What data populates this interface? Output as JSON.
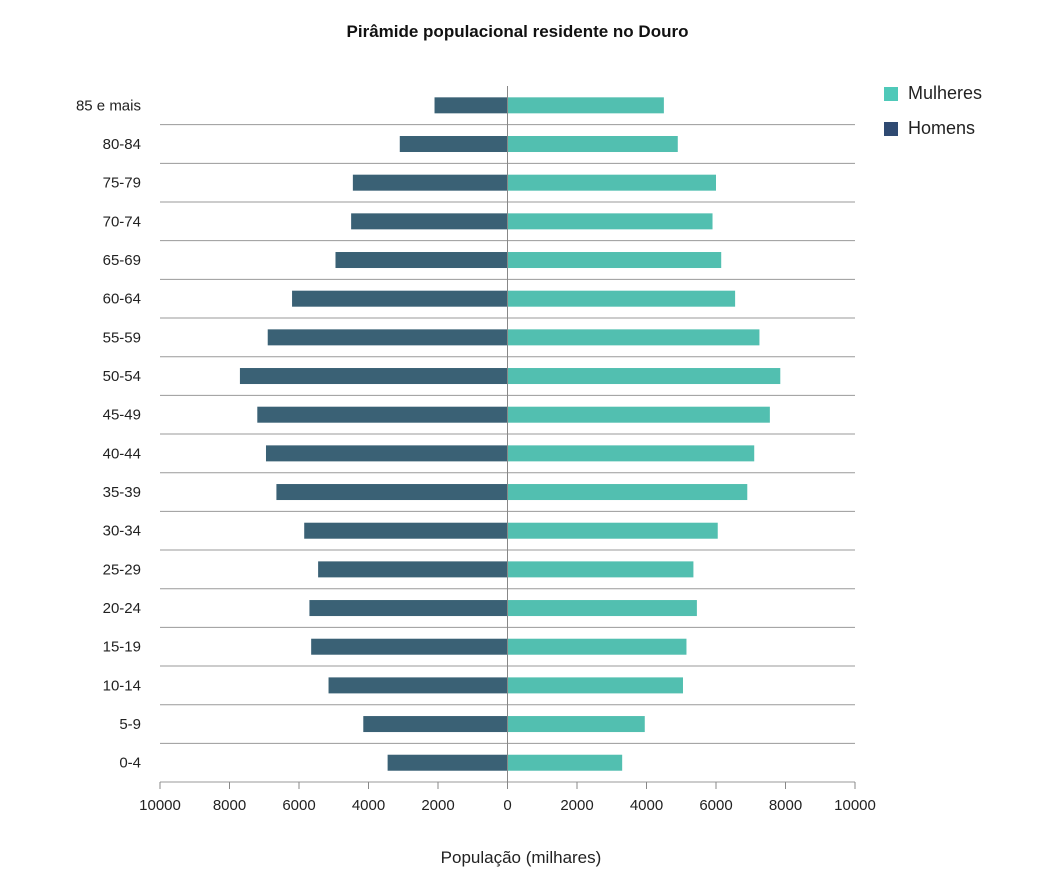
{
  "chart_data": {
    "type": "bar",
    "orientation": "horizontal",
    "title": "Pirâmide populacional residente no Douro",
    "xlabel": "População (milhares)",
    "ylabel": "",
    "xlim": [
      -10000,
      10000
    ],
    "x_ticks": [
      -10000,
      -8000,
      -6000,
      -4000,
      -2000,
      0,
      2000,
      4000,
      6000,
      8000,
      10000
    ],
    "x_tick_labels": [
      "10000",
      "8000",
      "6000",
      "4000",
      "2000",
      "0",
      "2000",
      "4000",
      "6000",
      "8000",
      "10000"
    ],
    "categories": [
      "85 e mais",
      "80-84",
      "75-79",
      "70-74",
      "65-69",
      "60-64",
      "55-59",
      "50-54",
      "45-49",
      "40-44",
      "35-39",
      "30-34",
      "25-29",
      "20-24",
      "15-19",
      "10-14",
      "5-9",
      "0-4"
    ],
    "series": [
      {
        "name": "Mulheres",
        "color": "#52bfb0",
        "values": [
          4500,
          4900,
          6000,
          5900,
          6150,
          6550,
          7250,
          7850,
          7550,
          7100,
          6900,
          6050,
          5350,
          5450,
          5150,
          5050,
          3950,
          3300
        ]
      },
      {
        "name": "Homens",
        "color": "#3a6175",
        "values": [
          2100,
          3100,
          4450,
          4500,
          4950,
          6200,
          6900,
          7700,
          7200,
          6950,
          6650,
          5850,
          5450,
          5700,
          5650,
          5150,
          4150,
          3450
        ]
      }
    ],
    "legend": {
      "position": "top-right",
      "entries": [
        "Mulheres",
        "Homens"
      ],
      "colors": [
        "#4fc9b9",
        "#2f4a72"
      ]
    },
    "grid": true
  }
}
